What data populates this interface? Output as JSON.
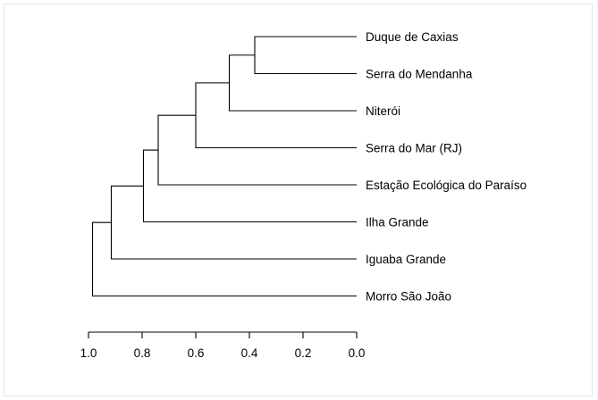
{
  "chart_data": {
    "type": "dendrogram",
    "orientation": "horizontal",
    "leaves": [
      "Duque de Caxias",
      "Serra do Mendanha",
      "Niterói",
      "Serra do Mar (RJ)",
      "Estação Ecológica do Paraíso",
      "Ilha Grande",
      "Iguaba Grande",
      "Morro São João"
    ],
    "merges": [
      {
        "left": "leaf:0",
        "right": "leaf:1",
        "height": 0.38
      },
      {
        "left": "node:0",
        "right": "leaf:2",
        "height": 0.475
      },
      {
        "left": "node:1",
        "right": "leaf:3",
        "height": 0.6
      },
      {
        "left": "node:2",
        "right": "leaf:4",
        "height": 0.74
      },
      {
        "left": "node:3",
        "right": "leaf:5",
        "height": 0.795
      },
      {
        "left": "node:4",
        "right": "leaf:6",
        "height": 0.915
      },
      {
        "left": "node:5",
        "right": "leaf:7",
        "height": 0.985
      }
    ],
    "xlim": [
      1.0,
      0.0
    ],
    "ticks": [
      1.0,
      0.8,
      0.6,
      0.4,
      0.2,
      0.0
    ],
    "tick_labels": [
      "1.0",
      "0.8",
      "0.6",
      "0.4",
      "0.2",
      "0.0"
    ],
    "title": "",
    "xlabel": "",
    "ylabel": ""
  }
}
